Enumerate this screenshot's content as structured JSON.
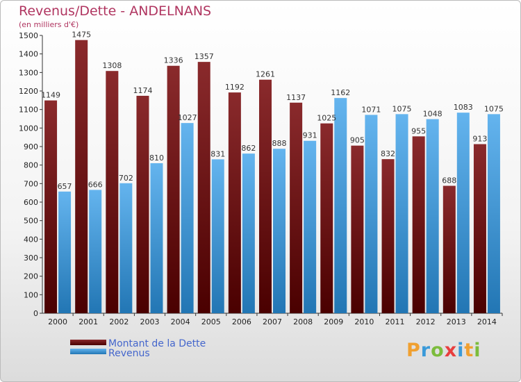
{
  "header": {
    "title": "Revenus/Dette - ANDELNANS",
    "subtitle": "(en milliers d'€)"
  },
  "legend": {
    "debt_label": "Montant de la Dette",
    "revenue_label": "Revenus"
  },
  "logo": {
    "text": "Proxiti",
    "colors": [
      "#f0a030",
      "#3a9ad9",
      "#7cbc3c",
      "#e83e3e",
      "#3a9ad9",
      "#f0a030",
      "#7cbc3c"
    ]
  },
  "colors": {
    "debt_light": "#8a2a2c",
    "debt_dark": "#4a0000",
    "revenue_light": "#64b4ee",
    "revenue_dark": "#2276b4",
    "title": "#b03560"
  },
  "chart_data": {
    "type": "bar",
    "title": "Revenus/Dette - ANDELNANS",
    "subtitle": "(en milliers d'€)",
    "categories": [
      "2000",
      "2001",
      "2002",
      "2003",
      "2004",
      "2005",
      "2006",
      "2007",
      "2008",
      "2009",
      "2010",
      "2011",
      "2012",
      "2013",
      "2014"
    ],
    "series": [
      {
        "name": "Montant de la Dette",
        "values": [
          1149,
          1475,
          1308,
          1174,
          1336,
          1357,
          1192,
          1261,
          1137,
          1025,
          905,
          832,
          955,
          688,
          913
        ]
      },
      {
        "name": "Revenus",
        "values": [
          657,
          666,
          702,
          810,
          1027,
          831,
          862,
          888,
          931,
          1162,
          1071,
          1075,
          1048,
          1083,
          1075
        ]
      }
    ],
    "ylim": [
      0,
      1500
    ],
    "ytick_step": 100,
    "grid": false,
    "legend_position": "bottom-left"
  }
}
